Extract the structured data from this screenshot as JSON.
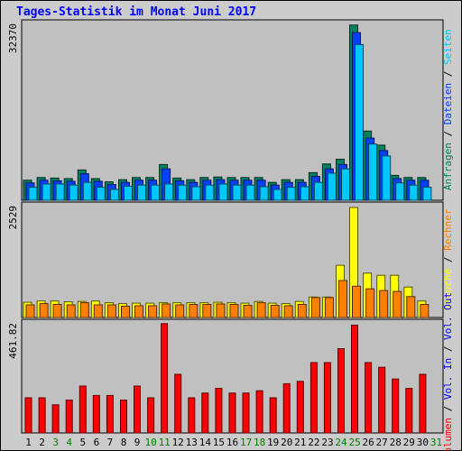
{
  "title": "Tages-Statistik im Monat Juni 2017",
  "colors": {
    "anfragen": "#008060",
    "dateien": "#0040ff",
    "seiten": "#00c8ff",
    "besuche": "#ffff00",
    "rechner": "#ff8000",
    "volumen": "#ff0000",
    "weekday_label": "#000000",
    "weekend_label": "#008000"
  },
  "chart_data": [
    {
      "type": "bar",
      "panel": "top",
      "ymax_label": "32370",
      "ylim": [
        0,
        32370
      ],
      "legend": [
        {
          "key": "anfragen",
          "label": "Anfragen"
        },
        {
          "key": "dateien",
          "label": "Dateien"
        },
        {
          "key": "seiten",
          "label": "Seiten"
        }
      ],
      "series": [
        {
          "name": "Anfragen",
          "key": "anfragen",
          "values": [
            3700,
            4200,
            4100,
            4000,
            5600,
            4000,
            3400,
            3800,
            4200,
            4200,
            6600,
            4100,
            3800,
            4200,
            4300,
            4200,
            4200,
            4200,
            3300,
            3800,
            3800,
            5100,
            6700,
            7600,
            32400,
            12800,
            10200,
            4600,
            4200,
            4200
          ]
        },
        {
          "name": "Dateien",
          "key": "dateien",
          "values": [
            3200,
            3700,
            3600,
            3500,
            4900,
            3500,
            2900,
            3300,
            3700,
            3700,
            5800,
            3600,
            3300,
            3700,
            3800,
            3700,
            3700,
            3700,
            2800,
            3300,
            3300,
            4400,
            5800,
            6600,
            31000,
            11500,
            9200,
            4000,
            3700,
            3700
          ]
        },
        {
          "name": "Seiten",
          "key": "seiten",
          "values": [
            2400,
            3000,
            3000,
            2800,
            3300,
            2400,
            2000,
            2600,
            2800,
            2800,
            3000,
            2800,
            2500,
            2800,
            3000,
            2800,
            2800,
            2500,
            2000,
            2400,
            2500,
            3300,
            5000,
            5800,
            28800,
            10400,
            8200,
            3200,
            2800,
            2400
          ]
        }
      ]
    },
    {
      "type": "bar",
      "panel": "middle",
      "ymax_label": "2529",
      "ylim": [
        0,
        2529
      ],
      "legend": [
        {
          "key": "besuche",
          "label": "Besuche"
        },
        {
          "key": "rechner",
          "label": "Rechner"
        }
      ],
      "series": [
        {
          "name": "Besuche",
          "key": "besuche",
          "values": [
            350,
            380,
            380,
            360,
            370,
            380,
            340,
            320,
            330,
            330,
            340,
            340,
            340,
            340,
            350,
            340,
            330,
            370,
            330,
            320,
            370,
            470,
            470,
            1200,
            2529,
            1020,
            970,
            970,
            700,
            380
          ]
        },
        {
          "name": "Rechner",
          "key": "rechner",
          "values": [
            290,
            320,
            300,
            290,
            340,
            290,
            290,
            260,
            270,
            270,
            310,
            290,
            300,
            300,
            310,
            300,
            280,
            340,
            280,
            270,
            300,
            460,
            460,
            850,
            720,
            660,
            620,
            600,
            480,
            300
          ]
        }
      ]
    },
    {
      "type": "bar",
      "panel": "bottom",
      "ymax_label": "461.82",
      "ylim": [
        0,
        461.82
      ],
      "legend": [
        {
          "key": "volumen",
          "label": "Volumen"
        },
        {
          "key": "vol_in",
          "label": "Vol. In"
        },
        {
          "key": "vol_out",
          "label": "Vol. Out"
        }
      ],
      "series": [
        {
          "name": "Volumen",
          "key": "volumen",
          "values": [
            150,
            150,
            120,
            140,
            200,
            160,
            160,
            140,
            200,
            150,
            470,
            250,
            150,
            170,
            190,
            170,
            170,
            180,
            150,
            210,
            220,
            300,
            300,
            360,
            460,
            300,
            280,
            230,
            190,
            250
          ]
        }
      ]
    }
  ],
  "days": [
    "1",
    "2",
    "3",
    "4",
    "5",
    "6",
    "7",
    "8",
    "9",
    "10",
    "11",
    "12",
    "13",
    "14",
    "15",
    "16",
    "17",
    "18",
    "19",
    "20",
    "21",
    "22",
    "23",
    "24",
    "25",
    "26",
    "27",
    "28",
    "29",
    "30",
    "31"
  ],
  "weekend_days": [
    "3",
    "4",
    "10",
    "11",
    "17",
    "18",
    "24",
    "25",
    "31"
  ]
}
